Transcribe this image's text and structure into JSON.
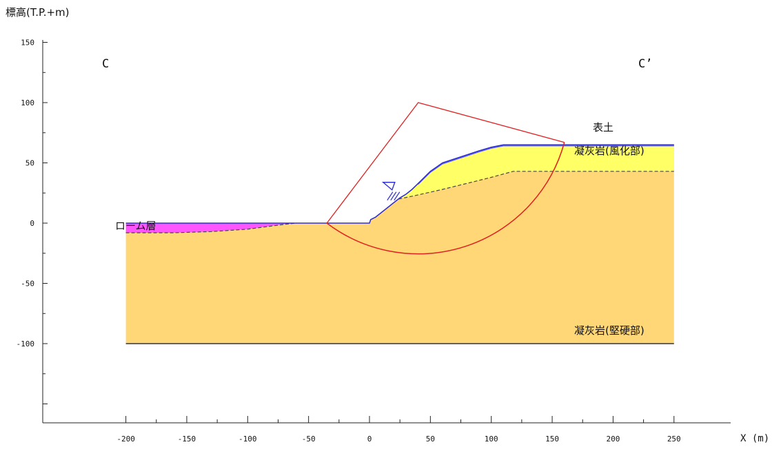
{
  "chart_data": {
    "type": "cross-section",
    "ylabel": "標高(T.P.+m)",
    "xlabel": "X (m)",
    "xlim": [
      -200,
      250
    ],
    "ylim": [
      -150,
      150
    ],
    "x_ticks": [
      -200,
      -150,
      -100,
      -50,
      0,
      50,
      100,
      150,
      200,
      250
    ],
    "y_ticks": [
      150,
      100,
      50,
      0,
      -50,
      -100
    ],
    "section_start": "C",
    "section_end": "C’",
    "layers": [
      {
        "name": "表土",
        "color": "#6868ff"
      },
      {
        "name": "凝灰岩(風化部)",
        "color": "#ffff66"
      },
      {
        "name": "ローム層",
        "color": "#ff55ff"
      },
      {
        "name": "凝灰岩(堅硬部)",
        "color": "#ffd777"
      }
    ],
    "ground_surface": [
      [
        -200,
        0
      ],
      [
        -35,
        0
      ],
      [
        0,
        0
      ],
      [
        1,
        3
      ],
      [
        5,
        5
      ],
      [
        10,
        9
      ],
      [
        15,
        13
      ],
      [
        20,
        17
      ],
      [
        25,
        21
      ],
      [
        30,
        24
      ],
      [
        35,
        28
      ],
      [
        40,
        33
      ],
      [
        50,
        43
      ],
      [
        60,
        50
      ],
      [
        75,
        55
      ],
      [
        90,
        60
      ],
      [
        100,
        63
      ],
      [
        110,
        65
      ],
      [
        120,
        65
      ],
      [
        250,
        65
      ]
    ],
    "weathered_tuff_base": [
      [
        24,
        20
      ],
      [
        38,
        23
      ],
      [
        60,
        28
      ],
      [
        80,
        33
      ],
      [
        100,
        38
      ],
      [
        118,
        43
      ],
      [
        250,
        43
      ]
    ],
    "loam_base": [
      [
        -200,
        -8
      ],
      [
        -160,
        -8
      ],
      [
        -130,
        -7
      ],
      [
        -100,
        -5
      ],
      [
        -85,
        -3
      ],
      [
        -70,
        -1
      ],
      [
        -60,
        0
      ]
    ],
    "model_bottom": -100,
    "slip_circle": {
      "center": [
        40,
        100
      ],
      "radius": 124,
      "start": [
        -35,
        0
      ],
      "end": [
        160,
        67
      ],
      "color": "#e02020"
    },
    "water_level_marker": [
      18,
      27
    ]
  }
}
